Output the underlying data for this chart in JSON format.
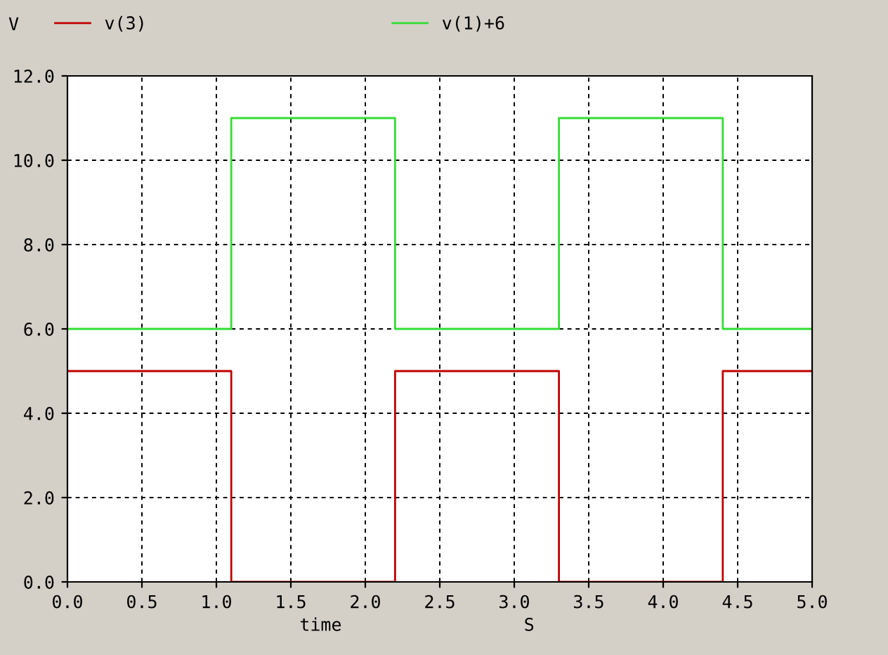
{
  "chart_data": {
    "type": "step",
    "xlabel": "time",
    "ylabel": "V",
    "annotations": [
      "S"
    ],
    "series": [
      {
        "name": "v(3)",
        "color": "#c00000",
        "x": [
          0,
          1.1,
          2.2,
          3.3,
          4.4,
          5
        ],
        "values": [
          5,
          0,
          5,
          0,
          5,
          5
        ]
      },
      {
        "name": "v(1)+6",
        "color": "#33dd33",
        "x": [
          0,
          1.1,
          2.2,
          3.3,
          4.4,
          5
        ],
        "values": [
          6,
          11,
          6,
          11,
          6,
          6
        ]
      }
    ],
    "xlim": [
      0,
      5
    ],
    "ylim": [
      0,
      12
    ],
    "xticks": [
      {
        "value": 0,
        "label": "0.0"
      },
      {
        "value": 0.5,
        "label": "0.5"
      },
      {
        "value": 1,
        "label": "1.0"
      },
      {
        "value": 1.5,
        "label": "1.5"
      },
      {
        "value": 2,
        "label": "2.0"
      },
      {
        "value": 2.5,
        "label": "2.5"
      },
      {
        "value": 3,
        "label": "3.0"
      },
      {
        "value": 3.5,
        "label": "3.5"
      },
      {
        "value": 4,
        "label": "4.0"
      },
      {
        "value": 4.5,
        "label": "4.5"
      },
      {
        "value": 5,
        "label": "5.0"
      }
    ],
    "yticks": [
      {
        "value": 0,
        "label": "0.0"
      },
      {
        "value": 2,
        "label": "2.0"
      },
      {
        "value": 4,
        "label": "4.0"
      },
      {
        "value": 6,
        "label": "6.0"
      },
      {
        "value": 8,
        "label": "8.0"
      },
      {
        "value": 10,
        "label": "10.0"
      },
      {
        "value": 12,
        "label": "12.0"
      }
    ],
    "grid": true,
    "legend": "top",
    "line_style": "solid"
  }
}
